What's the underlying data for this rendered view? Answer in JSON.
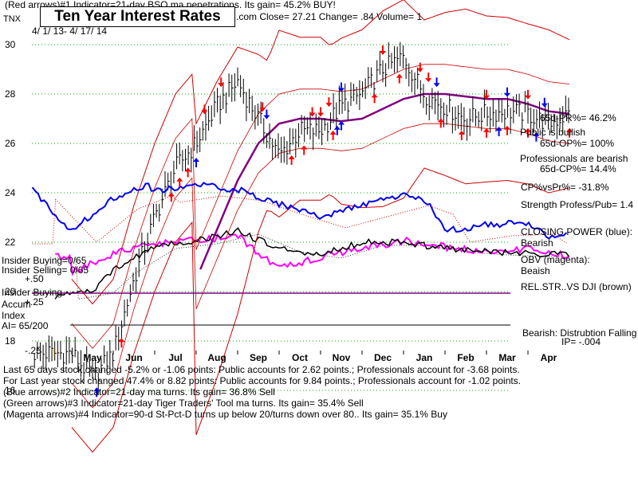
{
  "header": {
    "line1": "(Red arrows)#1 Indicator=21-day BSQ ma penetrations. Its gain= 45.2% BUY!",
    "title": "Ten Year Interest Rates",
    "ticker": "TNX",
    "date_range": "4/ 1/ 13- 4/ 17/ 14",
    "quote": ".com     Close=  27.21   Change= .84  Volume=  1"
  },
  "right_panel": {
    "pr65": "65d-PR%= 46.2%",
    "public_status": "Public is bullish",
    "op65": "65d-OP%= 100%",
    "pro_status": "Professionals are bearish",
    "cp65": "65d-CP%= 14.4%",
    "cpvspr": "CP%vsPr%= -31.8%",
    "strength": "Strength Profess/Pub= 1.4",
    "closing_power": "CLOSING POWER (blue):",
    "closing_power_value": "Bearish",
    "obv": "OBV (magenta):",
    "obv_value": "Beaish",
    "relstr": "REL.STR..VS DJI (brown)",
    "bearish_line": "Bearish: Distrubtion Falling",
    "ip": "IP= -.004"
  },
  "left_panel": {
    "insider_buying": "Insider Buying=0/65",
    "insider_selling": "Insider Selling= 0/65",
    "plus50": "+.50",
    "accum1": "Insider Buying",
    "accum2": "Accum",
    "plus25": "+.25",
    "accum3": "Index",
    "ai": "AI= 65/200",
    "minus25": "-.25"
  },
  "footer": {
    "line1": "Last 65 days stock changed -5.2% or -1.06 points:  Public accounts for  2.62 points.; Professionals account for -3.68 points.",
    "line2": "For Last year stock changed  47.4% or  8.82 points:  Public accounts for  9.84 points.; Professionals account for -1.02 points.",
    "line3": "(Blue arrows)#2 Indicator=21-day ma turns. Its gain= 36.8% Sell",
    "line4": "(Green arrows)#3 Indicator=21-day Tiger Traders' Tool ma turns. Its gain= 35.4% Sell",
    "line5": "(Magenta arrows)#4 Indicator=90-d St-Pct-D turns up below 20/turns down over 80.. Its gain= 35.1% Buy"
  },
  "colors": {
    "price": "#000000",
    "band": "#cc0000",
    "ma": "#800080",
    "closing_power": "#0000ee",
    "obv": "#ff00ff",
    "relstr": "#000000",
    "grid": "#00aa00",
    "red_arrow": "#ff0000",
    "blue_arrow": "#0000ff"
  },
  "chart_data": {
    "type": "line",
    "title": "Ten Year Interest Rates",
    "y_ticks": [
      "30",
      "28",
      "26",
      "24",
      "22",
      "20",
      "18",
      "16"
    ],
    "ylim": [
      14,
      31
    ],
    "x_months": [
      "May",
      "Jun",
      "Jul",
      "Aug",
      "Sep",
      "Oct",
      "Nov",
      "Dec",
      "Jan",
      "Feb",
      "Mar",
      "Apr"
    ],
    "x": [
      0,
      0.5,
      1,
      1.5,
      2,
      2.5,
      3,
      3.5,
      4,
      4.5,
      5,
      5.5,
      6,
      6.5,
      7,
      7.5,
      8,
      8.5,
      9,
      9.5,
      10,
      10.5,
      11,
      11.5,
      12
    ],
    "series": [
      {
        "values": [
          17.5,
          16.5,
          17.5,
          20.5,
          23.0,
          25.0,
          26.0,
          27.5,
          28.5,
          27.0,
          25.5,
          26.5,
          26.5,
          27.5,
          28.0,
          29.0,
          29.5,
          28.0,
          27.5,
          27.0,
          27.2,
          27.3,
          27.2,
          26.8,
          27.2
        ]
      },
      {
        "values": [
          null,
          null,
          null,
          null,
          null,
          null,
          20.5,
          22.5,
          24.5,
          26.0,
          26.8,
          27.0,
          27.0,
          26.9,
          27.0,
          27.4,
          27.8,
          28.0,
          28.0,
          27.9,
          27.8,
          27.8,
          27.6,
          27.3,
          27.2
        ]
      }
    ],
    "red_arrows_up_x": [
      1.2,
      2.4,
      2.6,
      2.8,
      5.3,
      5.6,
      6.3,
      7.3,
      7.9,
      8.9,
      9.4,
      10.0,
      10.5,
      11.0,
      12.0
    ],
    "red_arrows_down_x": [
      3.2,
      3.6,
      4.6,
      5.8,
      6.0,
      6.2,
      7.5,
      8.4,
      8.6,
      10.0,
      11.0
    ],
    "blue_arrows_up_x": [
      0.6,
      3.0,
      6.4,
      6.5,
      10.3,
      11.2
    ],
    "blue_arrows_down_x": [
      4.7,
      6.5,
      8.8,
      10.5,
      11.4
    ]
  }
}
